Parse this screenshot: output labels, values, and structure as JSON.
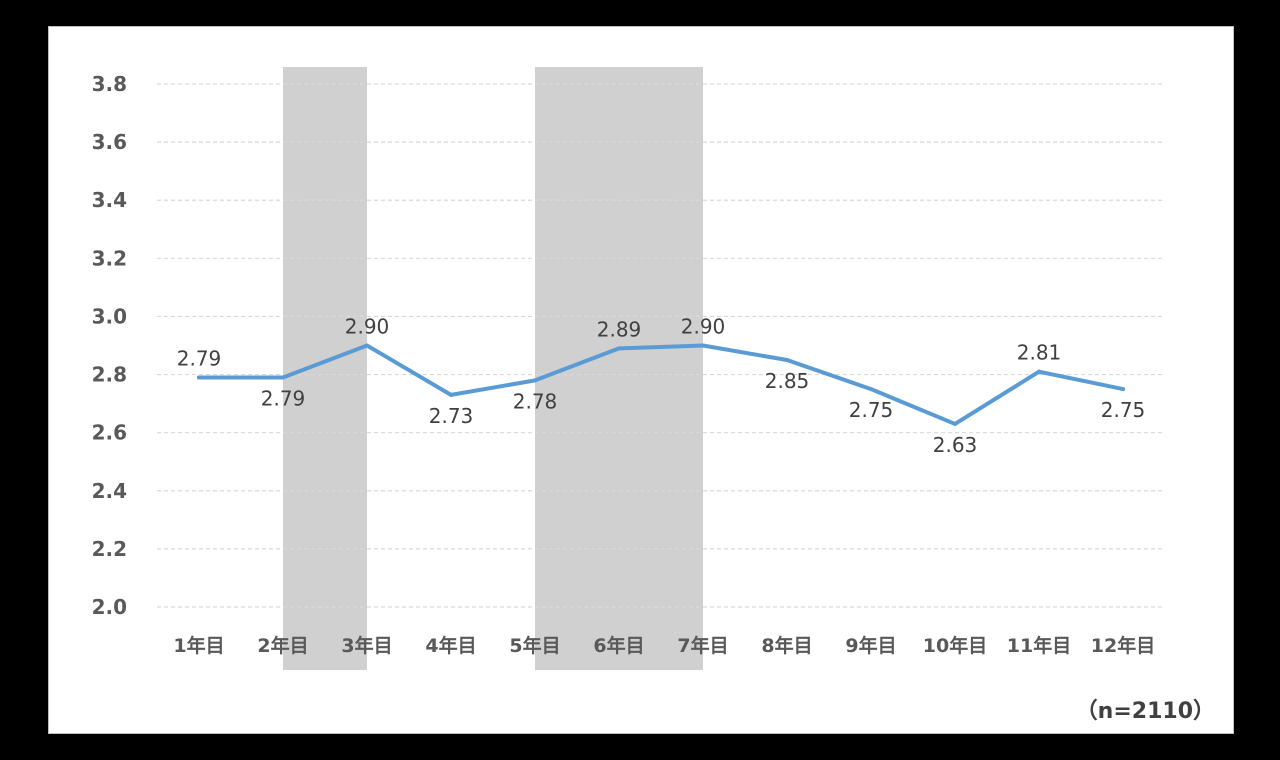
{
  "chart_data": {
    "type": "line",
    "categories": [
      "1年目",
      "2年目",
      "3年目",
      "4年目",
      "5年目",
      "6年目",
      "7年目",
      "8年目",
      "9年目",
      "10年目",
      "11年目",
      "12年目"
    ],
    "series": [
      {
        "values": [
          2.79,
          2.79,
          2.9,
          2.73,
          2.78,
          2.89,
          2.9,
          2.85,
          2.75,
          2.63,
          2.81,
          2.75
        ],
        "value_labels": [
          "2.79",
          "2.79",
          "2.90",
          "2.73",
          "2.78",
          "2.89",
          "2.90",
          "2.85",
          "2.75",
          "2.63",
          "2.81",
          "2.75"
        ],
        "color": "#5b9bd5"
      }
    ],
    "y_tick_labels": [
      "2.0",
      "2.2",
      "2.4",
      "2.6",
      "2.8",
      "3.0",
      "3.2",
      "3.4",
      "3.6",
      "3.8"
    ],
    "ylim": [
      2.0,
      3.8
    ],
    "highlight_bands": [
      {
        "from": "2年目",
        "to": "3年目",
        "color": "#d0d0d0"
      },
      {
        "from": "5年目",
        "to": "7年目",
        "color": "#d0d0d0"
      }
    ],
    "grid": "horizontal dashed",
    "note": "（n=2110）",
    "gridline_color": "#d9d9d9",
    "background": "#ffffff"
  }
}
